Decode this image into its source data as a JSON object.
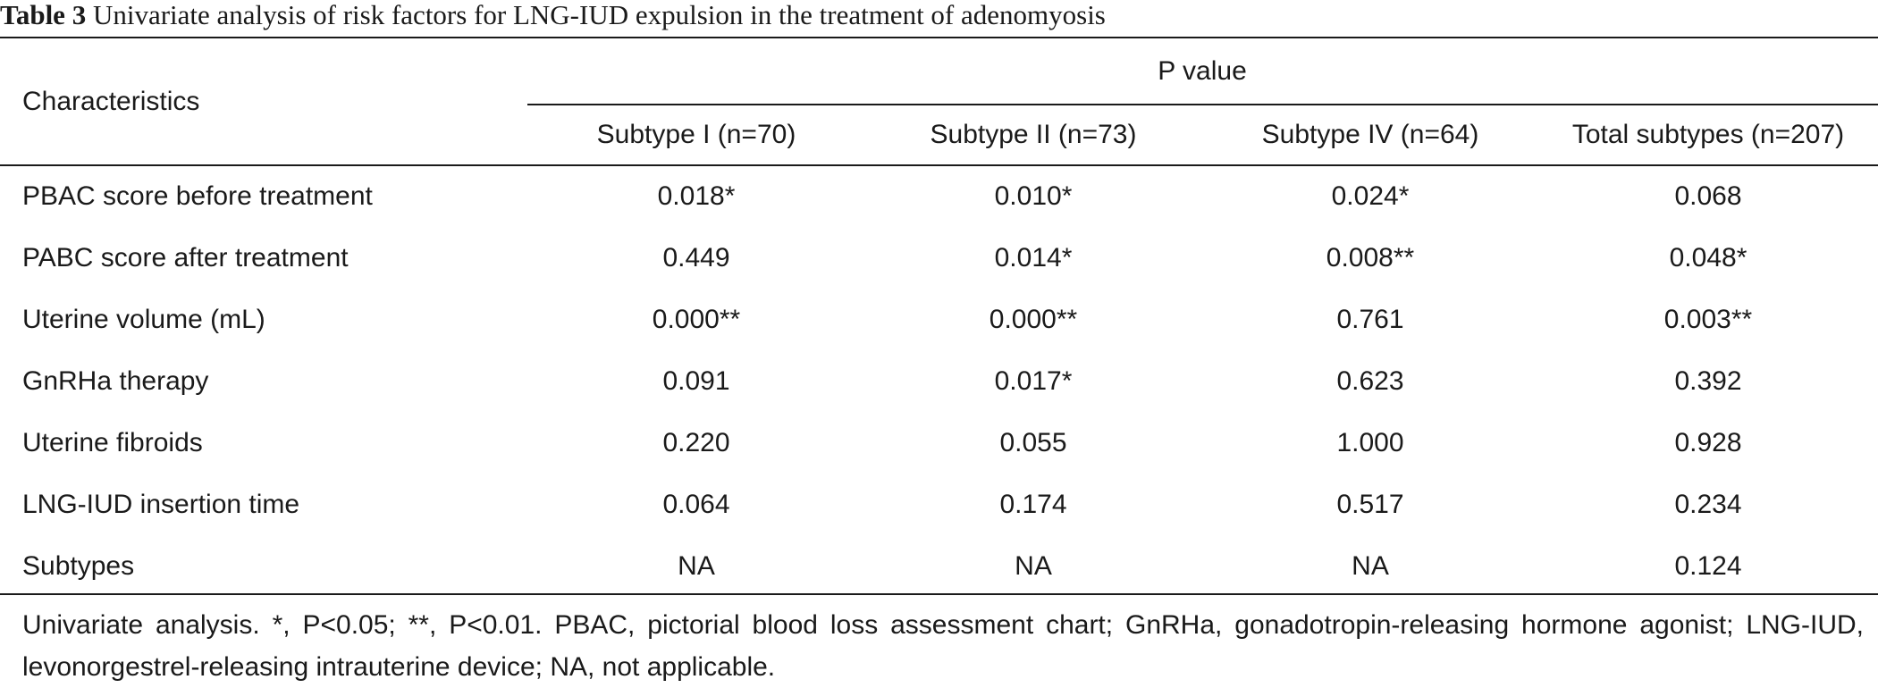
{
  "caption": {
    "label": "Table 3",
    "text": "Univariate analysis of risk factors for LNG-IUD expulsion in the treatment of adenomyosis"
  },
  "header": {
    "characteristics": "Characteristics",
    "group": "P value",
    "columns": [
      "Subtype I (n=70)",
      "Subtype II (n=73)",
      "Subtype IV (n=64)",
      "Total subtypes (n=207)"
    ]
  },
  "rows": [
    {
      "label": "PBAC score before treatment",
      "values": [
        "0.018*",
        "0.010*",
        "0.024*",
        "0.068"
      ]
    },
    {
      "label": "PABC score after treatment",
      "values": [
        "0.449",
        "0.014*",
        "0.008**",
        "0.048*"
      ]
    },
    {
      "label": "Uterine volume (mL)",
      "values": [
        "0.000**",
        "0.000**",
        "0.761",
        "0.003**"
      ]
    },
    {
      "label": "GnRHa therapy",
      "values": [
        "0.091",
        "0.017*",
        "0.623",
        "0.392"
      ]
    },
    {
      "label": "Uterine fibroids",
      "values": [
        "0.220",
        "0.055",
        "1.000",
        "0.928"
      ]
    },
    {
      "label": "LNG-IUD insertion time",
      "values": [
        "0.064",
        "0.174",
        "0.517",
        "0.234"
      ]
    },
    {
      "label": "Subtypes",
      "values": [
        "NA",
        "NA",
        "NA",
        "0.124"
      ]
    }
  ],
  "footnote": "Univariate analysis. *, P<0.05; **, P<0.01. PBAC, pictorial blood loss assessment chart; GnRHa, gonadotropin-releasing hormone agonist; LNG-IUD, levonorgestrel-releasing intrauterine device; NA, not applicable."
}
